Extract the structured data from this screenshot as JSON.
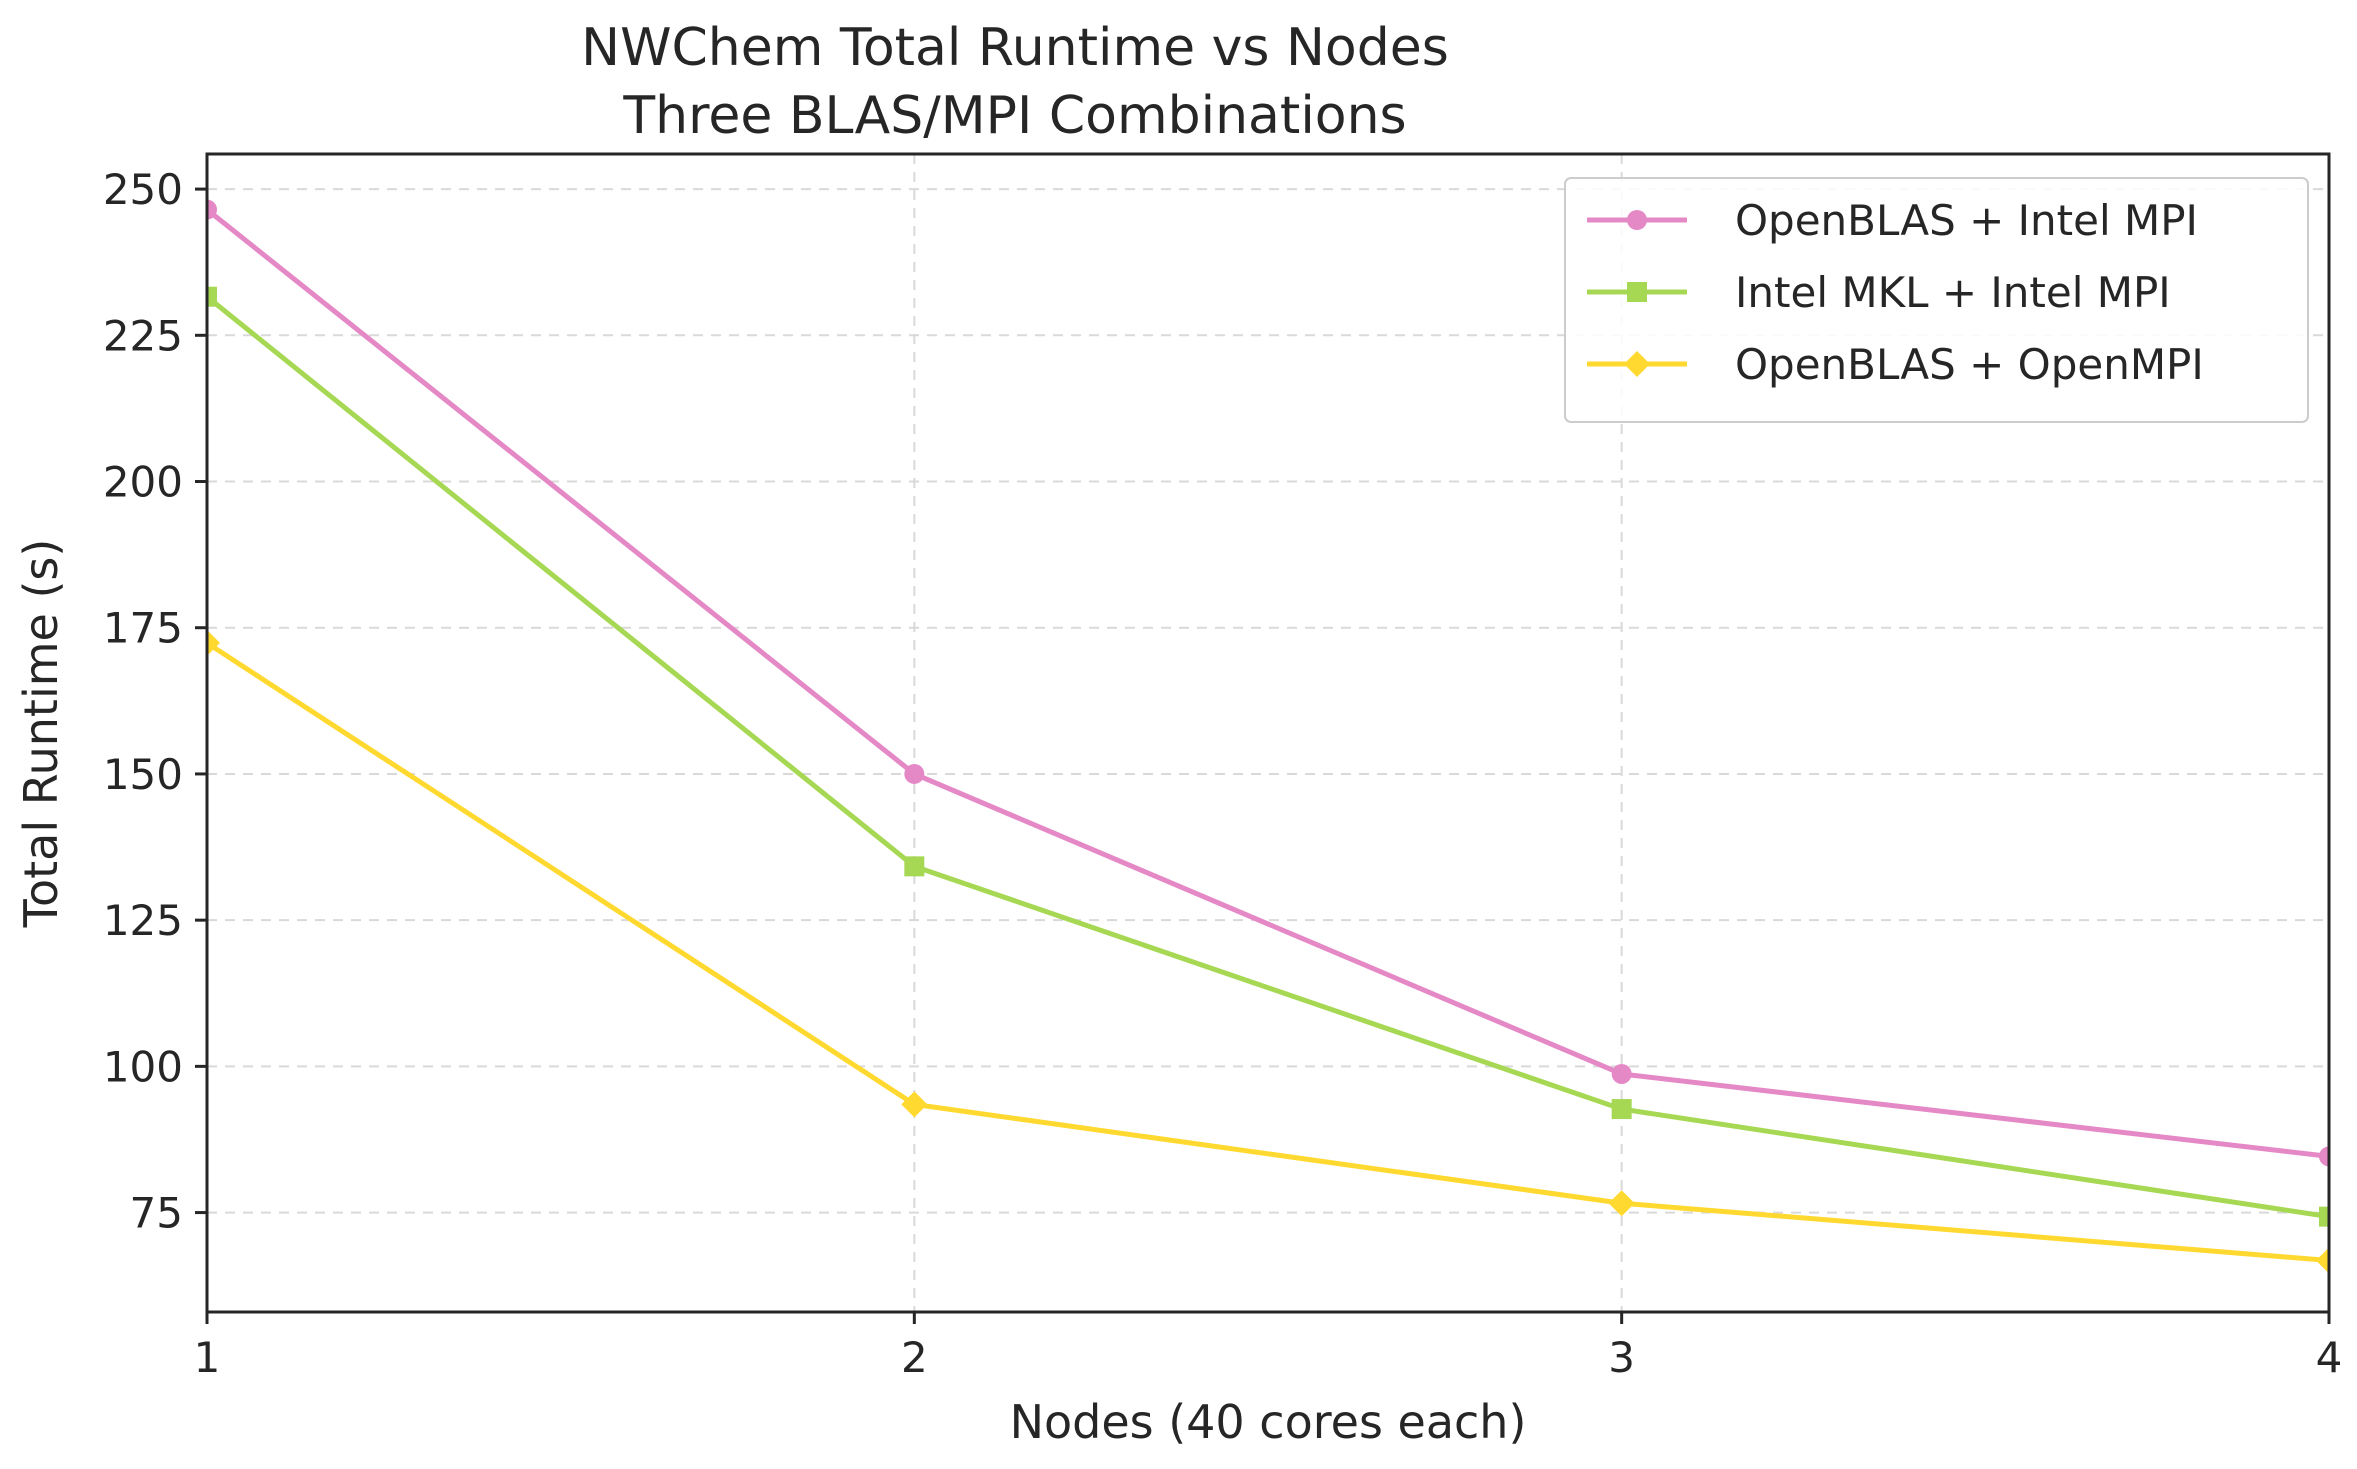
{
  "chart_data": {
    "type": "line",
    "title": "NWChem Total Runtime vs Nodes",
    "subtitle": "Three BLAS/MPI Combinations",
    "xlabel": "Nodes (40 cores each)",
    "ylabel": "Total Runtime (s)",
    "x": [
      1,
      2,
      3,
      4
    ],
    "xticks": [
      "1",
      "2",
      "3",
      "4"
    ],
    "yticks": [
      "75",
      "100",
      "125",
      "150",
      "175",
      "200",
      "225",
      "250"
    ],
    "xlim": [
      1,
      4
    ],
    "ylim": [
      58,
      256
    ],
    "grid": true,
    "legend_position": "top-right",
    "series": [
      {
        "name": "OpenBLAS + Intel MPI",
        "marker": "circle",
        "color": "#e588c6",
        "values": [
          246.5,
          150.0,
          98.7,
          84.6
        ]
      },
      {
        "name": "Intel MKL + Intel MPI",
        "marker": "square",
        "color": "#a6d854",
        "values": [
          231.6,
          134.2,
          92.7,
          74.3
        ]
      },
      {
        "name": "OpenBLAS + OpenMPI",
        "marker": "diamond",
        "color": "#ffd92f",
        "values": [
          172.4,
          93.5,
          76.6,
          66.8
        ]
      }
    ]
  }
}
